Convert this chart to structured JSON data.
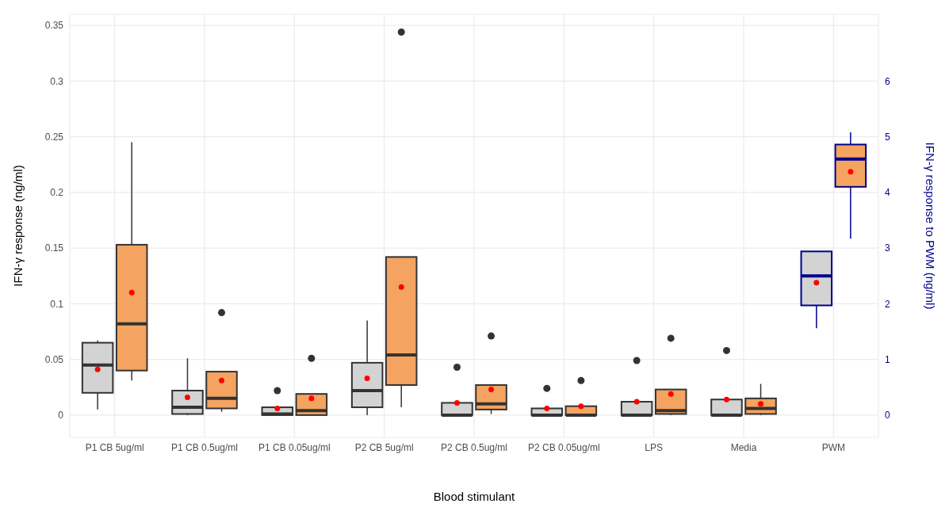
{
  "chart_data": {
    "type": "box",
    "xlabel": "Blood stimulant",
    "ylabel": "IFN-γ response (ng/ml)",
    "y2label": "IFN-γ response to PWM (ng/ml)",
    "categories": [
      "P1 CB 5ug/ml",
      "P1 CB 0.5ug/ml",
      "P1 CB 0.05ug/ml",
      "P2 CB 5ug/ml",
      "P2 CB 0.5ug/ml",
      "P2 CB 0.05ug/ml",
      "LPS",
      "Media",
      "PWM"
    ],
    "ylim": [
      -0.02,
      0.36
    ],
    "yticks": [
      0,
      0.05,
      0.1,
      0.15,
      0.2,
      0.25,
      0.3,
      0.35
    ],
    "y2lim": [
      -0.4,
      7.2
    ],
    "y2ticks": [
      0,
      1,
      2,
      3,
      4,
      5,
      6
    ],
    "grid": true,
    "legend": false,
    "series": [
      {
        "color": "#d3d3d3",
        "boxes": [
          {
            "low": 0.005,
            "q1": 0.02,
            "median": 0.045,
            "q3": 0.065,
            "high": 0.067,
            "mean": 0.041
          },
          {
            "low": 0,
            "q1": 0.001,
            "median": 0.007,
            "q3": 0.022,
            "high": 0.051,
            "mean": 0.016
          },
          {
            "low": 0,
            "q1": 0,
            "median": 0.001,
            "q3": 0.007,
            "high": 0.007,
            "mean": 0.006,
            "outliers": [
              0.022
            ]
          },
          {
            "low": 0,
            "q1": 0.007,
            "median": 0.022,
            "q3": 0.047,
            "high": 0.085,
            "mean": 0.033
          },
          {
            "low": 0,
            "q1": 0,
            "median": 0,
            "q3": 0.011,
            "high": 0.011,
            "mean": 0.011,
            "outliers": [
              0.043
            ]
          },
          {
            "low": 0,
            "q1": 0,
            "median": 0,
            "q3": 0.006,
            "high": 0.006,
            "mean": 0.006,
            "outliers": [
              0.024
            ]
          },
          {
            "low": 0,
            "q1": 0,
            "median": 0,
            "q3": 0.012,
            "high": 0.012,
            "mean": 0.012,
            "outliers": [
              0.049
            ]
          },
          {
            "low": 0,
            "q1": 0,
            "median": 0,
            "q3": 0.014,
            "high": 0.014,
            "mean": 0.014,
            "outliers": [
              0.058
            ]
          },
          null
        ]
      },
      {
        "color": "#f4a460",
        "boxes": [
          {
            "low": 0.031,
            "q1": 0.04,
            "median": 0.082,
            "q3": 0.153,
            "high": 0.245,
            "mean": 0.11
          },
          {
            "low": 0.003,
            "q1": 0.006,
            "median": 0.015,
            "q3": 0.039,
            "high": 0.039,
            "mean": 0.031,
            "outliers": [
              0.092
            ]
          },
          {
            "low": 0,
            "q1": 0,
            "median": 0.004,
            "q3": 0.019,
            "high": 0.019,
            "mean": 0.015,
            "outliers": [
              0.051
            ]
          },
          {
            "low": 0.007,
            "q1": 0.027,
            "median": 0.054,
            "q3": 0.142,
            "high": 0.142,
            "mean": 0.115,
            "outliers": [
              0.344
            ]
          },
          {
            "low": 0.001,
            "q1": 0.005,
            "median": 0.01,
            "q3": 0.027,
            "high": 0.027,
            "mean": 0.023,
            "outliers": [
              0.071
            ]
          },
          {
            "low": 0,
            "q1": 0,
            "median": 0,
            "q3": 0.008,
            "high": 0.008,
            "mean": 0.008,
            "outliers": [
              0.031
            ]
          },
          {
            "low": 0,
            "q1": 0.001,
            "median": 0.004,
            "q3": 0.023,
            "high": 0.023,
            "mean": 0.019,
            "outliers": [
              0.069
            ]
          },
          {
            "low": 0,
            "q1": 0.001,
            "median": 0.006,
            "q3": 0.015,
            "high": 0.028,
            "mean": 0.01
          },
          null
        ]
      },
      {
        "color": "#d3d3d3",
        "axis": "y2",
        "boxes": [
          null,
          null,
          null,
          null,
          null,
          null,
          null,
          null,
          {
            "low": 1.56,
            "q1": 1.97,
            "median": 2.5,
            "q3": 2.94,
            "high": 2.94,
            "mean": 2.38
          }
        ]
      },
      {
        "color": "#f4a460",
        "axis": "y2",
        "boxes": [
          null,
          null,
          null,
          null,
          null,
          null,
          null,
          null,
          {
            "low": 3.17,
            "q1": 4.1,
            "median": 4.6,
            "q3": 4.86,
            "high": 5.08,
            "mean": 4.37
          }
        ]
      }
    ]
  }
}
